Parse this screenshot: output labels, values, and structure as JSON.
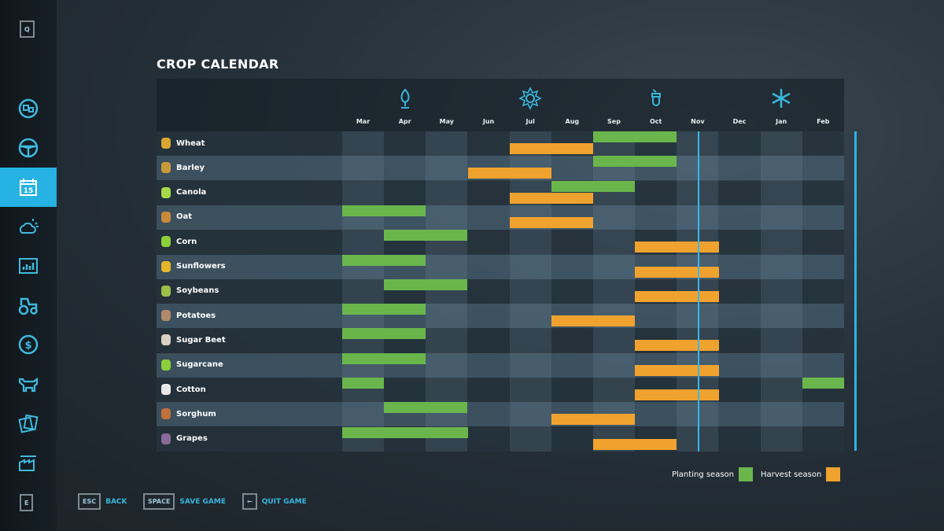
{
  "title": "CROP CALENDAR",
  "sidebar": {
    "top_key": "Q",
    "bottom_key": "E",
    "items": [
      {
        "icon": "map-icon",
        "active": false
      },
      {
        "icon": "steering-wheel-icon",
        "active": false
      },
      {
        "icon": "calendar-icon",
        "active": true,
        "label": "15"
      },
      {
        "icon": "weather-icon",
        "active": false
      },
      {
        "icon": "statistics-icon",
        "active": false
      },
      {
        "icon": "tractor-icon",
        "active": false
      },
      {
        "icon": "finance-icon",
        "active": false
      },
      {
        "icon": "animals-icon",
        "active": false
      },
      {
        "icon": "contracts-icon",
        "active": false
      },
      {
        "icon": "production-icon",
        "active": false
      }
    ]
  },
  "seasons": [
    {
      "name": "spring",
      "icon": "sprout-icon"
    },
    {
      "name": "summer",
      "icon": "sun-icon"
    },
    {
      "name": "autumn",
      "icon": "acorn-icon"
    },
    {
      "name": "winter",
      "icon": "snowflake-icon"
    }
  ],
  "colors": {
    "planting": "#6ab64d",
    "harvest": "#f0a22f",
    "accent": "#26b2e3"
  },
  "months": [
    "Mar",
    "Apr",
    "May",
    "Jun",
    "Jul",
    "Aug",
    "Sep",
    "Oct",
    "Nov",
    "Dec",
    "Jan",
    "Feb"
  ],
  "current_date": {
    "month": "Nov",
    "fraction_of_month": 0.5
  },
  "crops": [
    {
      "name": "Wheat",
      "color": "#d9a531",
      "planting": [
        "Sep",
        "Oct"
      ],
      "harvest": [
        "Jul",
        "Aug"
      ]
    },
    {
      "name": "Barley",
      "color": "#c99a3a",
      "planting": [
        "Sep",
        "Oct"
      ],
      "harvest": [
        "Jun",
        "Jul"
      ]
    },
    {
      "name": "Canola",
      "color": "#a7d94a",
      "planting": [
        "Aug",
        "Sep"
      ],
      "harvest": [
        "Jul",
        "Aug"
      ]
    },
    {
      "name": "Oat",
      "color": "#c98a3a",
      "planting": [
        "Mar",
        "Apr"
      ],
      "harvest": [
        "Jul",
        "Aug"
      ]
    },
    {
      "name": "Corn",
      "color": "#8ccf3a",
      "planting": [
        "Apr",
        "May"
      ],
      "harvest": [
        "Oct",
        "Nov"
      ]
    },
    {
      "name": "Sunflowers",
      "color": "#e5b52a",
      "planting": [
        "Mar",
        "Apr"
      ],
      "harvest": [
        "Oct",
        "Nov"
      ]
    },
    {
      "name": "Soybeans",
      "color": "#9bbf4a",
      "planting": [
        "Apr",
        "May"
      ],
      "harvest": [
        "Oct",
        "Nov"
      ]
    },
    {
      "name": "Potatoes",
      "color": "#b08a6a",
      "planting": [
        "Mar",
        "Apr"
      ],
      "harvest": [
        "Aug",
        "Sep"
      ]
    },
    {
      "name": "Sugar Beet",
      "color": "#d8d0c0",
      "planting": [
        "Mar",
        "Apr"
      ],
      "harvest": [
        "Oct",
        "Nov"
      ]
    },
    {
      "name": "Sugarcane",
      "color": "#8ccf3a",
      "planting": [
        "Mar",
        "Apr"
      ],
      "harvest": [
        "Oct",
        "Nov"
      ]
    },
    {
      "name": "Cotton",
      "color": "#e8e8e8",
      "planting": [
        "Feb",
        "Mar"
      ],
      "harvest": [
        "Oct",
        "Nov"
      ]
    },
    {
      "name": "Sorghum",
      "color": "#c0703a",
      "planting": [
        "Apr",
        "May"
      ],
      "harvest": [
        "Aug",
        "Sep"
      ]
    },
    {
      "name": "Grapes",
      "color": "#8a6a9a",
      "planting": [
        "Mar",
        "Apr",
        "May"
      ],
      "harvest": [
        "Sep",
        "Oct"
      ]
    }
  ],
  "legend": {
    "planting": "Planting season",
    "harvest": "Harvest season"
  },
  "footer": [
    {
      "key": "ESC",
      "label": "BACK"
    },
    {
      "key": "SPACE",
      "label": "SAVE GAME"
    },
    {
      "key": "←",
      "label": "QUIT GAME"
    }
  ]
}
